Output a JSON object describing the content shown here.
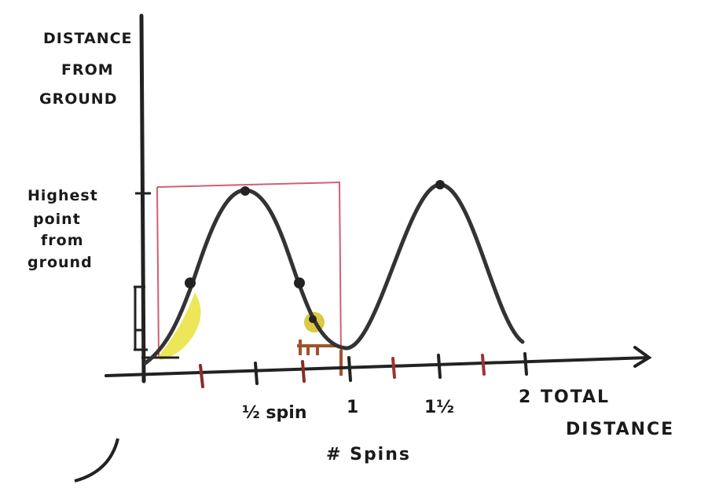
{
  "y_axis_label": [
    "DISTANCE",
    "FROM",
    "GROUND"
  ],
  "annotation": [
    "Highest",
    "point",
    "from",
    "ground"
  ],
  "x_ticks": [
    "½ spin",
    "1",
    "1½",
    "2"
  ],
  "x_axis_label": [
    "TOTAL",
    "DISTANCE"
  ],
  "x_axis_title": "# Spins"
}
